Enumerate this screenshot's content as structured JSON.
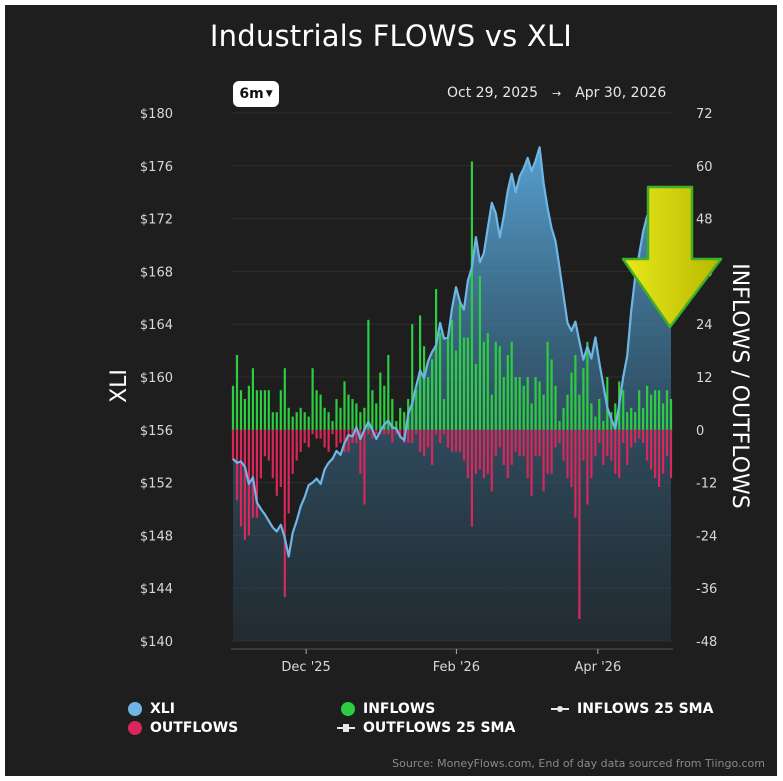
{
  "title": "Industrials FLOWS vs XLI",
  "range_selector": {
    "label": "6m"
  },
  "date_range": {
    "start": "Oct 29, 2025",
    "arrow": "→",
    "end": "Apr 30, 2026"
  },
  "source_note": "Source: MoneyFlows.com, End of day data sourced from Tiingo.com",
  "colors": {
    "background": "#1e1e1e",
    "xli": "#6fb6e6",
    "inflows": "#2ecc40",
    "outflows": "#d7275b",
    "arrow": "#d6d600"
  },
  "legend": {
    "xli": "XLI",
    "inflows": "INFLOWS",
    "inflows_sma": "INFLOWS 25 SMA",
    "outflows": "OUTFLOWS",
    "outflows_sma": "OUTFLOWS 25 SMA"
  },
  "annotation": {
    "icon": "down-arrow-icon"
  },
  "chart_data": {
    "type": "bar+line",
    "left_axis": {
      "label": "XLI",
      "ticks": [
        "$180",
        "$176",
        "$172",
        "$168",
        "$164",
        "$160",
        "$156",
        "$152",
        "$148",
        "$144",
        "$140"
      ],
      "range": [
        140,
        180
      ]
    },
    "right_axis": {
      "label": "INFLOWS / OUTFLOWS",
      "ticks": [
        "72",
        "60",
        "48",
        "36",
        "24",
        "12",
        "0",
        "-12",
        "-24",
        "-36",
        "-48"
      ],
      "range": [
        -48,
        72
      ]
    },
    "x_ticks": [
      "Dec '25",
      "Feb '26",
      "Apr '26"
    ],
    "x_tick_positions": [
      0.17,
      0.51,
      0.83
    ],
    "xli": [
      153.8,
      153.5,
      153.6,
      153.2,
      151.9,
      152.4,
      150.5,
      150.0,
      149.6,
      149.1,
      148.6,
      148.3,
      148.8,
      147.8,
      146.4,
      148.2,
      149.1,
      150.2,
      150.9,
      151.8,
      152.0,
      152.3,
      151.9,
      153.0,
      153.5,
      153.8,
      154.4,
      154.1,
      155.0,
      155.6,
      155.5,
      156.2,
      155.3,
      156.0,
      156.6,
      156.0,
      155.3,
      155.9,
      156.4,
      156.7,
      156.2,
      156.1,
      155.5,
      155.2,
      157.2,
      158.0,
      159.3,
      160.5,
      159.9,
      161.2,
      161.9,
      162.4,
      164.1,
      162.9,
      163.0,
      165.2,
      166.8,
      165.7,
      165.1,
      167.3,
      168.3,
      170.6,
      168.7,
      169.4,
      171.3,
      173.2,
      172.4,
      170.6,
      172.2,
      174.1,
      175.4,
      174.0,
      175.2,
      175.8,
      176.6,
      175.6,
      176.4,
      177.4,
      174.7,
      172.8,
      171.3,
      170.3,
      168.3,
      166.2,
      164.1,
      163.5,
      164.2,
      162.7,
      161.3,
      162.3,
      161.4,
      163.0,
      161.1,
      159.4,
      157.7,
      156.8,
      156.1,
      157.9,
      160.0,
      161.6,
      165.0,
      167.6,
      169.3,
      171.0,
      172.2,
      170.7,
      172.8,
      173.1,
      172.1,
      173.5,
      172.9
    ],
    "inflows": [
      10,
      17,
      9,
      7,
      10,
      14,
      9,
      9,
      9,
      9,
      4,
      4,
      9,
      14,
      5,
      3,
      4,
      5,
      4,
      3,
      14,
      9,
      8,
      5,
      4,
      2,
      7,
      5,
      11,
      8,
      7,
      6,
      4,
      5,
      25,
      9,
      6,
      13,
      10,
      17,
      7,
      2,
      5,
      4,
      7,
      24,
      9,
      26,
      19,
      12,
      16,
      32,
      22,
      7,
      21,
      25,
      18,
      29,
      21,
      21,
      61,
      15,
      35,
      20,
      22,
      8,
      20,
      19,
      12,
      17,
      20,
      12,
      12,
      10,
      12,
      6,
      12,
      11,
      8,
      20,
      16,
      10,
      2,
      5,
      8,
      13,
      17,
      8,
      14,
      20,
      6,
      3,
      7,
      2,
      12,
      4,
      6,
      11,
      9,
      4,
      5,
      4,
      9,
      5,
      10,
      8,
      9,
      9,
      6,
      9,
      7
    ],
    "outflows": [
      -7,
      -16,
      -22,
      -25,
      -24,
      -20,
      -20,
      -11,
      -6,
      -7,
      -11,
      -15,
      -13,
      -38,
      -19,
      -10,
      -7,
      -5,
      -3,
      -4,
      -1,
      -2,
      -2,
      -4,
      -5,
      -1,
      -4,
      -3,
      -5,
      -5,
      -3,
      -3,
      -10,
      -17,
      -1,
      -2,
      -1,
      -1,
      -1,
      -1,
      -3,
      -1,
      -2,
      -3,
      -3,
      -3,
      -1,
      -5,
      -6,
      -4,
      -8,
      -1,
      -3,
      -1,
      -4,
      -5,
      -5,
      -5,
      -7,
      -11,
      -22,
      -10,
      -9,
      -11,
      -10,
      -14,
      -6,
      -4,
      -8,
      -11,
      -8,
      -5,
      -6,
      -6,
      -11,
      -15,
      -6,
      -6,
      -14,
      -10,
      -10,
      -4,
      -3,
      -7,
      -11,
      -13,
      -20,
      -43,
      -7,
      -17,
      -11,
      -6,
      -3,
      -8,
      -6,
      -7,
      -10,
      -11,
      -3,
      -8,
      -4,
      -3,
      -2,
      -3,
      -7,
      -9,
      -11,
      -13,
      -10,
      -6,
      -11
    ]
  }
}
